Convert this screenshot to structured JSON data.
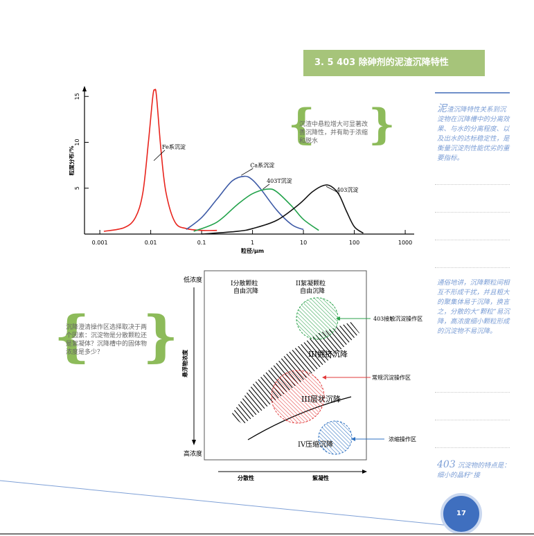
{
  "section_title": "3. 5  403 除砷剂的泥渣沉降特性",
  "note_top": "沉渣中悬粒增大可显著改善沉降性，并有助于浓缩和脱水",
  "note_left": "沉降澄清操作区选择取决于两个因素：沉淀物是分散颗粒还是絮凝体？沉降槽中的固体物浓度是多少？",
  "sidebar": {
    "intro_first": "泥",
    "intro_rest": "渣沉降特性关系到沉淀物在沉降槽中的分离效果、与水的分离程度、以及出水的达标稳定性，是衡量沉淀剂性能优劣的重要指标。",
    "explain": "通俗地讲，沉降颗粒间相互不形成干扰，并且粗大的聚集体易于沉降，换言之，分散的大“颗粒”易沉降，高浓度细小颗粒形成的沉淀物不易沉降。",
    "feature_num": "403",
    "feature_text": " 沉淀物的特点是：细小的晶籽“接"
  },
  "chart_data": {
    "type": "line",
    "xscale": "log",
    "xlabel": "粒径/μm",
    "ylabel": "粒度分布/%",
    "xticks": [
      "0.001",
      "0.01",
      "0.1",
      "1",
      "10",
      "100",
      "1000"
    ],
    "yticks": [
      "5",
      "10",
      "15"
    ],
    "xlim": [
      0.0005,
      1500
    ],
    "ylim": [
      0,
      16
    ],
    "series": [
      {
        "name": "Fe系沉淀",
        "color": "#e8231c",
        "x": [
          0.0012,
          0.003,
          0.005,
          0.007,
          0.009,
          0.011,
          0.012,
          0.013,
          0.016,
          0.02,
          0.03,
          0.05,
          0.1,
          0.2
        ],
        "y": [
          0.3,
          0.7,
          1.8,
          4.5,
          10.0,
          15.0,
          15.7,
          15.0,
          9.0,
          4.5,
          1.3,
          0.6,
          0.4,
          0.4
        ]
      },
      {
        "name": "Ca系沉淀",
        "color": "#3d5aa6",
        "x": [
          0.05,
          0.1,
          0.2,
          0.4,
          0.7,
          1.0,
          1.5,
          3,
          6,
          10
        ],
        "y": [
          0.5,
          1.8,
          3.8,
          5.8,
          6.3,
          5.9,
          4.8,
          2.6,
          1.0,
          0.5
        ]
      },
      {
        "name": "403T沉淀",
        "color": "#21a24a",
        "x": [
          0.07,
          0.2,
          0.5,
          1.0,
          2.0,
          3.0,
          6,
          10,
          20
        ],
        "y": [
          0.3,
          1.3,
          3.2,
          4.4,
          4.9,
          4.6,
          3.0,
          1.6,
          0.4
        ]
      },
      {
        "name": "403沉淀",
        "color": "#111111",
        "x": [
          0.1,
          0.5,
          1.0,
          3.0,
          8.0,
          15,
          25,
          35,
          50,
          70,
          100,
          150
        ],
        "y": [
          0.0,
          0.3,
          0.6,
          1.5,
          3.2,
          4.6,
          5.3,
          5.2,
          4.3,
          2.5,
          0.8,
          0.1
        ]
      }
    ]
  },
  "diagram": {
    "low_conc": "低浓度",
    "high_conc": "高浓度",
    "y_axis": "悬浮物浓度",
    "zone1_line1": "I分散颗粒",
    "zone1_line2": "自由沉降",
    "zone2_line1": "II絮凝颗粒",
    "zone2_line2": "自由沉降",
    "zone3": "III拥挤沉降",
    "zone3b": "III层状沉降",
    "zone4": "IV压缩沉降",
    "label_contact": "403接触沉淀操作区",
    "label_conventional": "常规沉淀操作区",
    "label_thicken": "浓缩操作区",
    "x_left": "分散性",
    "x_right": "絮凝性"
  },
  "page_number": "17",
  "colors": {
    "banner": "#a6c47a",
    "brace": "#8dbb5a",
    "sidebar_text": "#7d9fd6",
    "page_circle": "#3f6fbf"
  }
}
